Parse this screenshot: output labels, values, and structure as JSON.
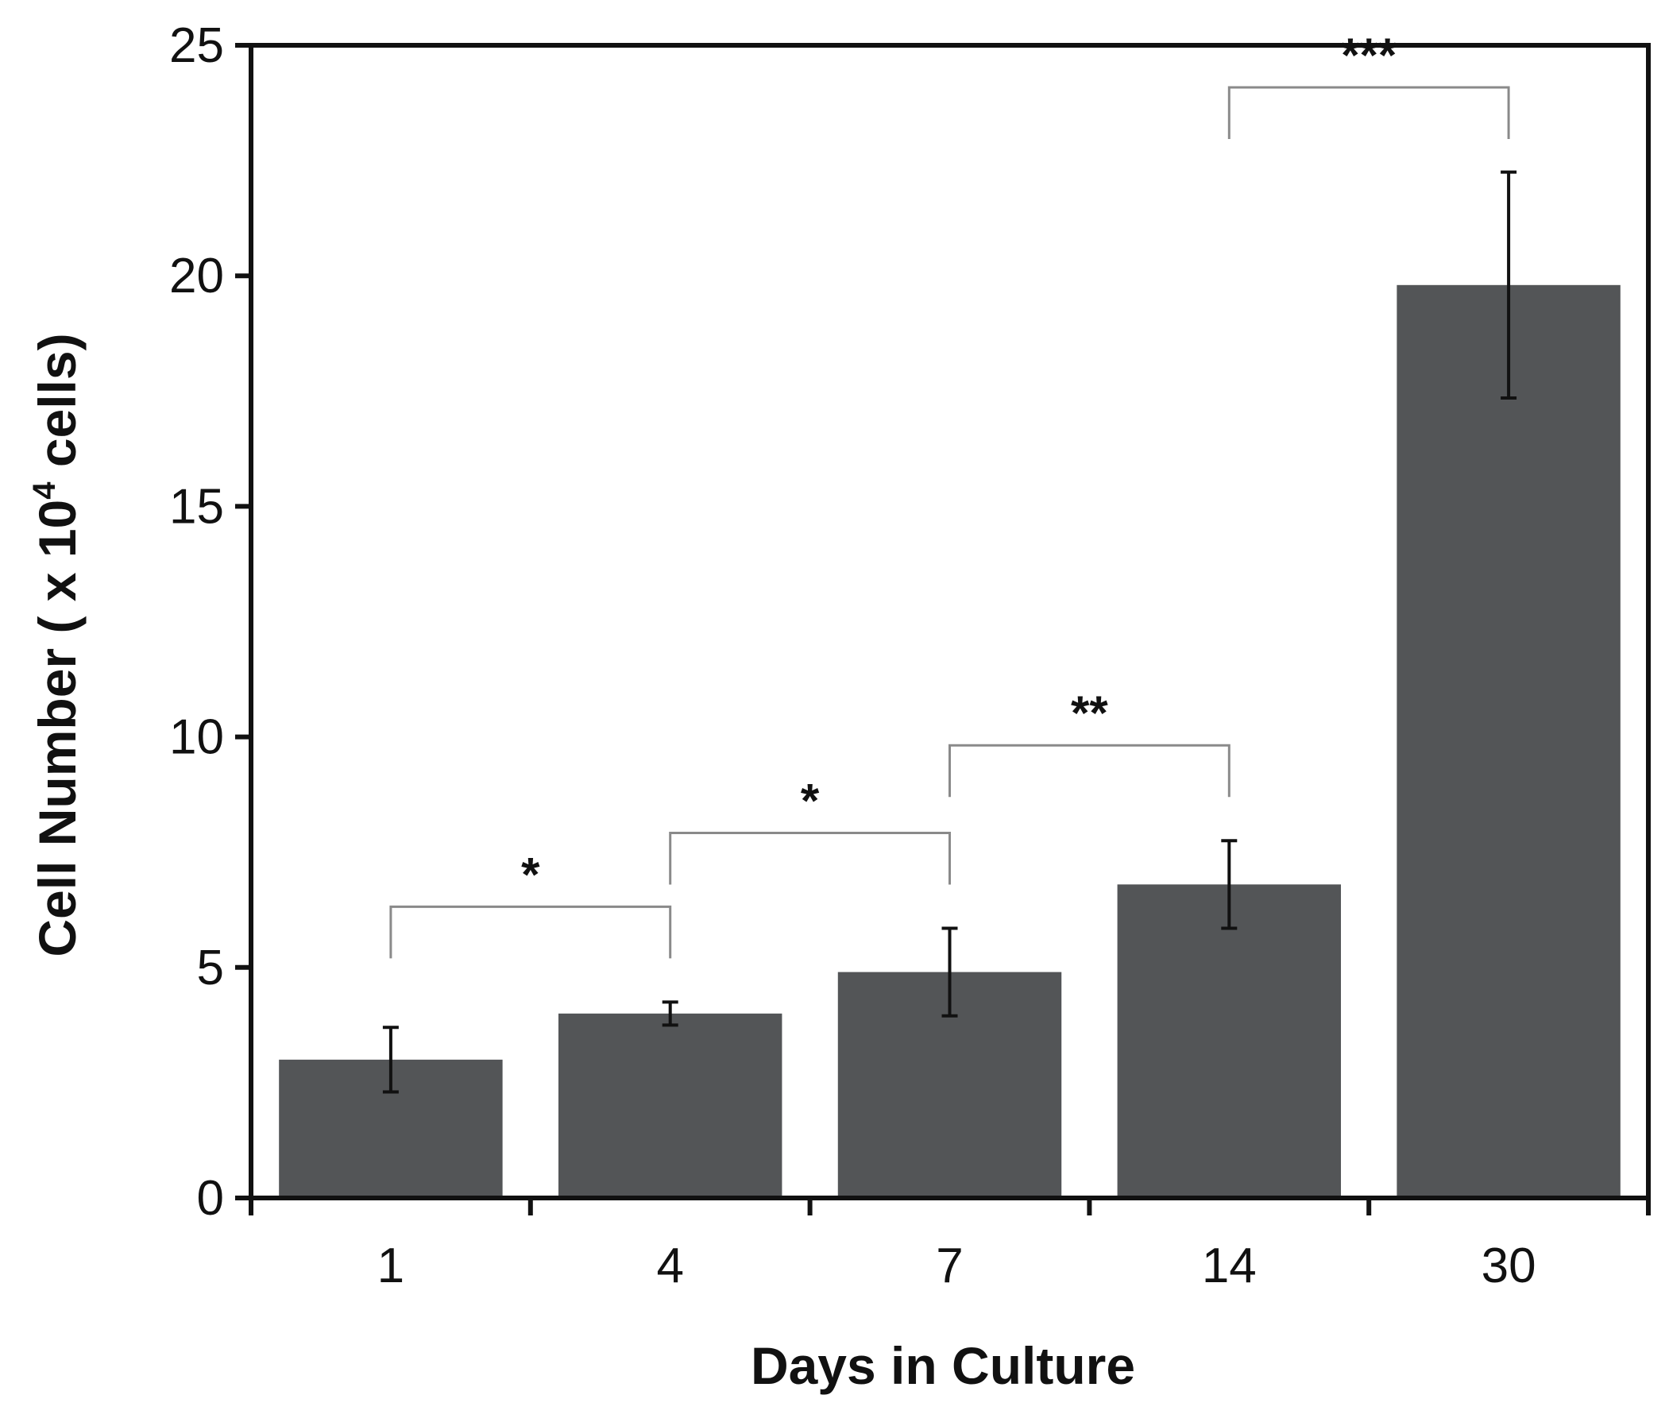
{
  "chart_data": {
    "type": "bar",
    "categories": [
      "1",
      "4",
      "7",
      "14",
      "30"
    ],
    "values": [
      3.0,
      4.0,
      4.9,
      6.8,
      19.8
    ],
    "error": [
      0.7,
      0.25,
      0.95,
      0.95,
      2.45
    ],
    "ylim": [
      0,
      25
    ],
    "yticks": [
      "0",
      "5",
      "10",
      "15",
      "20",
      "25"
    ],
    "xlabel": "Days in Culture",
    "ylabel": {
      "prefix": "Cell  Number ( x 10",
      "superscript": "4",
      "suffix": " cells)"
    },
    "significance": [
      {
        "from": 0,
        "to": 1,
        "label": "*"
      },
      {
        "from": 1,
        "to": 2,
        "label": "*"
      },
      {
        "from": 2,
        "to": 3,
        "label": "**"
      },
      {
        "from": 3,
        "to": 4,
        "label": "***"
      }
    ],
    "bar_color": "#535557",
    "grid": false
  }
}
